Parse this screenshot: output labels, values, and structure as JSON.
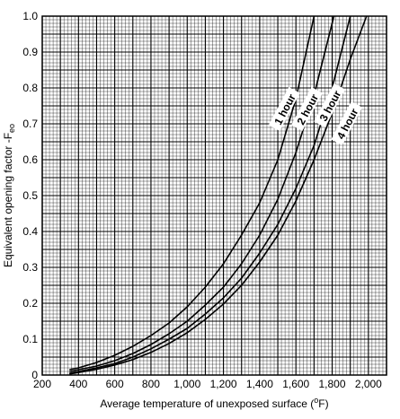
{
  "chart_data": {
    "type": "line",
    "title": "",
    "xlabel": {
      "prefix": "Average temperature of unexposed surface (",
      "sup": "o",
      "suffix": "F)"
    },
    "ylabel": {
      "prefix": "Equivalent opening factor -F",
      "sub": "eo"
    },
    "xlim": [
      200,
      2100
    ],
    "ylim": [
      0,
      1.0
    ],
    "x_ticks": [
      200,
      400,
      600,
      800,
      1000,
      1200,
      1400,
      1600,
      1800,
      2000
    ],
    "x_tick_labels": [
      "200",
      "400",
      "600",
      "800",
      "1,000",
      "1,200",
      "1,400",
      "1,600",
      "1,800",
      "2,000"
    ],
    "y_ticks": [
      0,
      0.1,
      0.2,
      0.3,
      0.4,
      0.5,
      0.6,
      0.7,
      0.8,
      0.9,
      1.0
    ],
    "y_tick_labels": [
      "0",
      "0.1",
      "0.2",
      "0.3",
      "0.4",
      "0.5",
      "0.6",
      "0.7",
      "0.8",
      "0.9",
      "1.0"
    ],
    "grid": {
      "major": true,
      "minor": true
    },
    "series": [
      {
        "name": "1 hour",
        "x": [
          350,
          400,
          500,
          600,
          700,
          800,
          900,
          1000,
          1100,
          1200,
          1300,
          1400,
          1500,
          1600,
          1700
        ],
        "y": [
          0.015,
          0.02,
          0.035,
          0.055,
          0.08,
          0.11,
          0.145,
          0.19,
          0.245,
          0.31,
          0.39,
          0.48,
          0.6,
          0.77,
          1.0
        ]
      },
      {
        "name": "2 hour",
        "x": [
          350,
          400,
          500,
          600,
          700,
          800,
          900,
          1000,
          1100,
          1200,
          1300,
          1400,
          1500,
          1600,
          1700,
          1810
        ],
        "y": [
          0.01,
          0.015,
          0.025,
          0.04,
          0.06,
          0.085,
          0.115,
          0.15,
          0.195,
          0.245,
          0.31,
          0.39,
          0.49,
          0.62,
          0.78,
          1.0
        ]
      },
      {
        "name": "3 hour",
        "x": [
          350,
          400,
          500,
          600,
          700,
          800,
          900,
          1000,
          1100,
          1200,
          1300,
          1400,
          1500,
          1600,
          1700,
          1800,
          1900
        ],
        "y": [
          0.005,
          0.01,
          0.02,
          0.032,
          0.05,
          0.073,
          0.1,
          0.13,
          0.17,
          0.215,
          0.27,
          0.34,
          0.42,
          0.52,
          0.64,
          0.8,
          1.0
        ]
      },
      {
        "name": "4 hour",
        "x": [
          350,
          400,
          500,
          600,
          700,
          800,
          900,
          1000,
          1100,
          1200,
          1300,
          1400,
          1500,
          1600,
          1700,
          1800,
          1900,
          1990
        ],
        "y": [
          0.003,
          0.007,
          0.016,
          0.028,
          0.043,
          0.063,
          0.088,
          0.118,
          0.155,
          0.198,
          0.25,
          0.315,
          0.39,
          0.485,
          0.6,
          0.73,
          0.88,
          1.0
        ]
      }
    ],
    "annotations": [
      {
        "text": "1 hour",
        "series": "1 hour"
      },
      {
        "text": "2 hour",
        "series": "2 hour"
      },
      {
        "text": "3 hour",
        "series": "3 hour"
      },
      {
        "text": "4 hour",
        "series": "4 hour"
      }
    ]
  }
}
